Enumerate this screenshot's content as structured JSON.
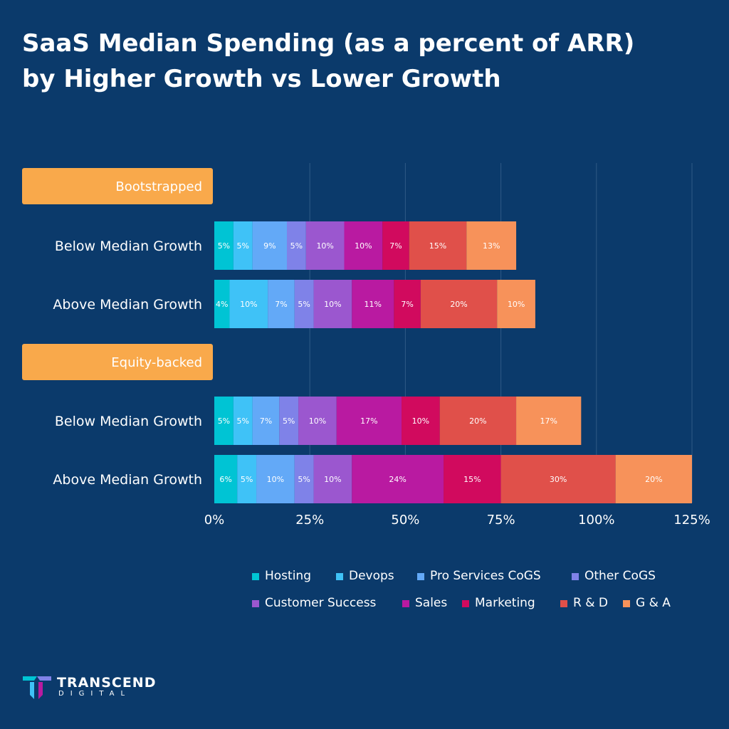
{
  "title_line1": "SaaS Median Spending (as a percent of ARR)",
  "title_line2": "by Higher Growth vs Lower Growth",
  "logo": {
    "word": "TRANSCEND",
    "sub": "DIGITAL",
    "icon": "transcend-logo-icon"
  },
  "chart_data": {
    "type": "bar",
    "orientation": "horizontal",
    "stacked": true,
    "xlim": [
      0,
      125
    ],
    "x_ticks": [
      "0%",
      "25%",
      "50%",
      "75%",
      "100%",
      "125%"
    ],
    "x_tick_values": [
      0,
      25,
      50,
      75,
      100,
      125
    ],
    "grid": true,
    "legend_position": "bottom",
    "groups": [
      {
        "name": "Bootstrapped",
        "color": "#f9a94b"
      },
      {
        "name": "Equity-backed",
        "color": "#f9a94b"
      }
    ],
    "categories": [
      {
        "group": "Bootstrapped",
        "label": "Below Median Growth"
      },
      {
        "group": "Bootstrapped",
        "label": "Above Median Growth"
      },
      {
        "group": "Equity-backed",
        "label": "Below Median Growth"
      },
      {
        "group": "Equity-backed",
        "label": "Above Median Growth"
      }
    ],
    "series": [
      {
        "name": "Hosting",
        "color": "#00c4d4",
        "values": [
          5,
          4,
          5,
          6
        ]
      },
      {
        "name": "Devops",
        "color": "#3fc2f7",
        "values": [
          5,
          10,
          5,
          5
        ]
      },
      {
        "name": "Pro Services CoGS",
        "color": "#63a9f7",
        "values": [
          9,
          7,
          7,
          10
        ]
      },
      {
        "name": "Other CoGS",
        "color": "#7f82e8",
        "values": [
          5,
          5,
          5,
          5
        ]
      },
      {
        "name": "Customer Success",
        "color": "#9b57cf",
        "values": [
          10,
          10,
          10,
          10
        ]
      },
      {
        "name": "Sales",
        "color": "#b91aa1",
        "values": [
          10,
          11,
          17,
          24
        ]
      },
      {
        "name": "Marketing",
        "color": "#d10a5e",
        "values": [
          7,
          7,
          10,
          15
        ]
      },
      {
        "name": "R & D",
        "color": "#e0504a",
        "values": [
          15,
          20,
          20,
          30
        ]
      },
      {
        "name": "G & A",
        "color": "#f7925a",
        "values": [
          13,
          10,
          17,
          20
        ]
      }
    ]
  }
}
